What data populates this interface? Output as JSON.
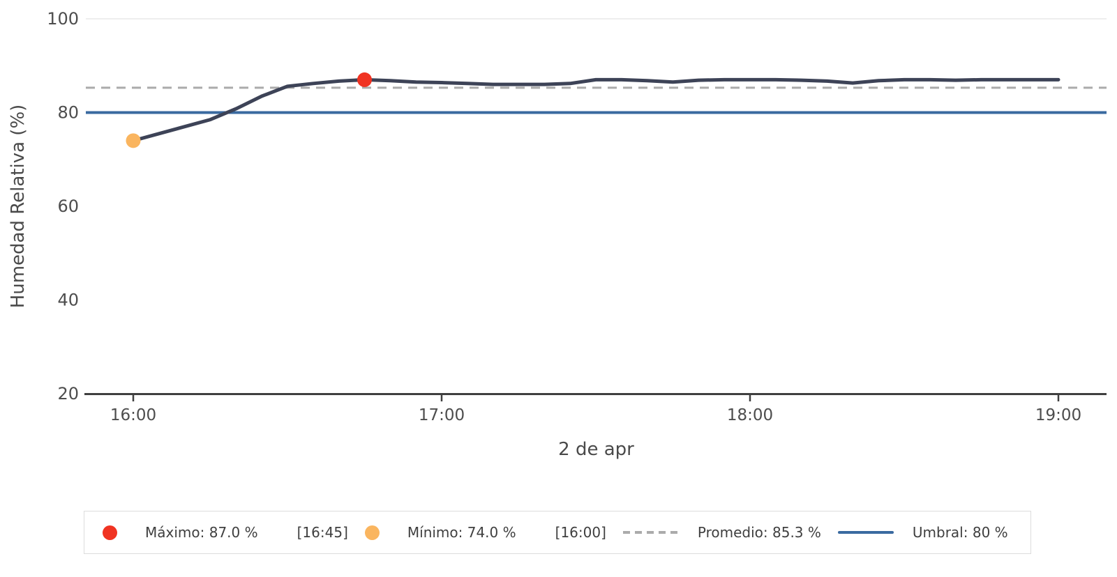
{
  "chart_data": {
    "type": "line",
    "title": "",
    "xlabel": "2 de apr",
    "ylabel": "Humedad Relativa (%)",
    "ylim": [
      20,
      100
    ],
    "yticks": [
      100,
      80,
      60,
      40,
      20
    ],
    "xticks": [
      "16:00",
      "17:00",
      "18:00",
      "19:00"
    ],
    "grid": "top-line-only",
    "legend_position": "bottom",
    "series": [
      {
        "name": "Humedad Relativa",
        "color": "#3D4357",
        "x": [
          "16:00",
          "16:05",
          "16:10",
          "16:15",
          "16:20",
          "16:25",
          "16:30",
          "16:35",
          "16:40",
          "16:45",
          "16:50",
          "16:55",
          "17:00",
          "17:05",
          "17:10",
          "17:15",
          "17:20",
          "17:25",
          "17:30",
          "17:35",
          "17:40",
          "17:45",
          "17:50",
          "17:55",
          "18:00",
          "18:05",
          "18:10",
          "18:15",
          "18:20",
          "18:25",
          "18:30",
          "18:35",
          "18:40",
          "18:45",
          "18:50",
          "18:55",
          "19:00"
        ],
        "values": [
          74.0,
          75.5,
          77.0,
          78.5,
          80.8,
          83.5,
          85.6,
          86.2,
          86.7,
          87.0,
          86.8,
          86.5,
          86.4,
          86.2,
          86.0,
          86.0,
          86.0,
          86.2,
          87.0,
          87.0,
          86.8,
          86.5,
          86.9,
          87.0,
          87.0,
          87.0,
          86.9,
          86.7,
          86.3,
          86.8,
          87.0,
          87.0,
          86.9,
          87.0,
          87.0,
          87.0,
          87.0
        ]
      }
    ],
    "annotations": {
      "max": {
        "value": 87.0,
        "time": "16:45",
        "color": "#F03322"
      },
      "min": {
        "value": 74.0,
        "time": "16:00",
        "color": "#FAB55F"
      },
      "average": {
        "value": 85.3,
        "color": "#ABABAB",
        "style": "dashed"
      },
      "threshold": {
        "value": 80,
        "color": "#3A6AA0",
        "style": "solid"
      }
    },
    "colors": {
      "axis_line": "#3f3f3f",
      "tick_text": "#4d4d4d",
      "axis_title_text": "#4a4a4a",
      "top_grid": "#e9e9e9"
    }
  },
  "legend": {
    "items": [
      {
        "label": "Máximo: 87.0 %",
        "time": "[16:45]"
      },
      {
        "label": "Mínimo: 74.0 %",
        "time": "[16:00]"
      },
      {
        "label": "Promedio: 85.3 %",
        "time": ""
      },
      {
        "label": "Umbral: 80 %",
        "time": ""
      }
    ]
  }
}
